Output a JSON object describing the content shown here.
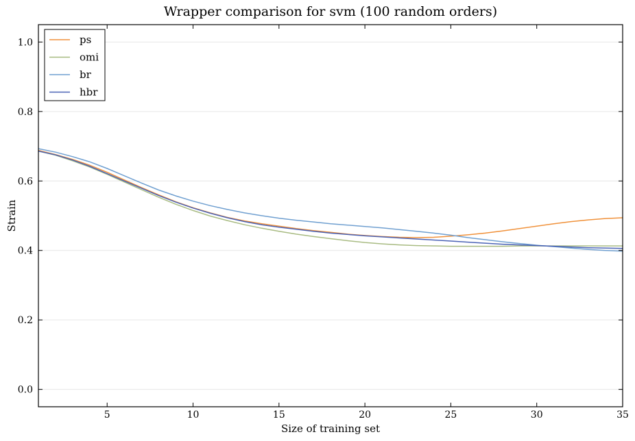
{
  "chart_data": {
    "type": "line",
    "title": "Wrapper comparison for svm (100 random orders)",
    "xlabel": "Size of training set",
    "ylabel": "Strain",
    "xlim": [
      1,
      35
    ],
    "ylim": [
      -0.05,
      1.05
    ],
    "xticks": [
      5,
      10,
      15,
      20,
      25,
      30,
      35
    ],
    "yticks": [
      0.0,
      0.2,
      0.4,
      0.6,
      0.8,
      1.0
    ],
    "xtick_labels": [
      "5",
      "10",
      "15",
      "20",
      "25",
      "30",
      "35"
    ],
    "ytick_labels": [
      "0.0",
      "0.2",
      "0.4",
      "0.6",
      "0.8",
      "1.0"
    ],
    "grid": "horizontal",
    "legend_position": "top-left",
    "x": [
      1,
      2,
      3,
      4,
      5,
      6,
      7,
      8,
      9,
      10,
      11,
      12,
      13,
      14,
      15,
      16,
      17,
      18,
      19,
      20,
      21,
      22,
      23,
      24,
      25,
      26,
      27,
      28,
      29,
      30,
      31,
      32,
      33,
      34,
      35
    ],
    "series": [
      {
        "name": "ps",
        "color": "#f0913a",
        "values": [
          0.688,
          0.676,
          0.662,
          0.645,
          0.625,
          0.603,
          0.581,
          0.56,
          0.54,
          0.523,
          0.508,
          0.495,
          0.485,
          0.477,
          0.47,
          0.463,
          0.457,
          0.452,
          0.447,
          0.443,
          0.44,
          0.438,
          0.437,
          0.438,
          0.441,
          0.445,
          0.45,
          0.456,
          0.463,
          0.47,
          0.477,
          0.483,
          0.488,
          0.492,
          0.494
        ]
      },
      {
        "name": "omi",
        "color": "#a8bb82",
        "values": [
          0.686,
          0.674,
          0.658,
          0.64,
          0.619,
          0.597,
          0.575,
          0.553,
          0.533,
          0.515,
          0.499,
          0.486,
          0.474,
          0.464,
          0.455,
          0.447,
          0.44,
          0.434,
          0.428,
          0.423,
          0.419,
          0.416,
          0.414,
          0.413,
          0.412,
          0.412,
          0.412,
          0.412,
          0.413,
          0.413,
          0.413,
          0.413,
          0.413,
          0.413,
          0.413
        ]
      },
      {
        "name": "br",
        "color": "#6f9fd0",
        "values": [
          0.693,
          0.683,
          0.67,
          0.655,
          0.636,
          0.615,
          0.594,
          0.574,
          0.557,
          0.542,
          0.529,
          0.518,
          0.508,
          0.5,
          0.493,
          0.487,
          0.482,
          0.477,
          0.473,
          0.469,
          0.465,
          0.46,
          0.455,
          0.45,
          0.444,
          0.437,
          0.431,
          0.425,
          0.42,
          0.415,
          0.411,
          0.407,
          0.403,
          0.4,
          0.398
        ]
      },
      {
        "name": "hbr",
        "color": "#4a62b5",
        "values": [
          0.686,
          0.675,
          0.66,
          0.642,
          0.621,
          0.6,
          0.579,
          0.558,
          0.539,
          0.522,
          0.507,
          0.494,
          0.483,
          0.474,
          0.467,
          0.461,
          0.455,
          0.45,
          0.446,
          0.442,
          0.439,
          0.436,
          0.433,
          0.43,
          0.427,
          0.424,
          0.421,
          0.418,
          0.416,
          0.414,
          0.412,
          0.41,
          0.408,
          0.407,
          0.406
        ]
      }
    ]
  }
}
